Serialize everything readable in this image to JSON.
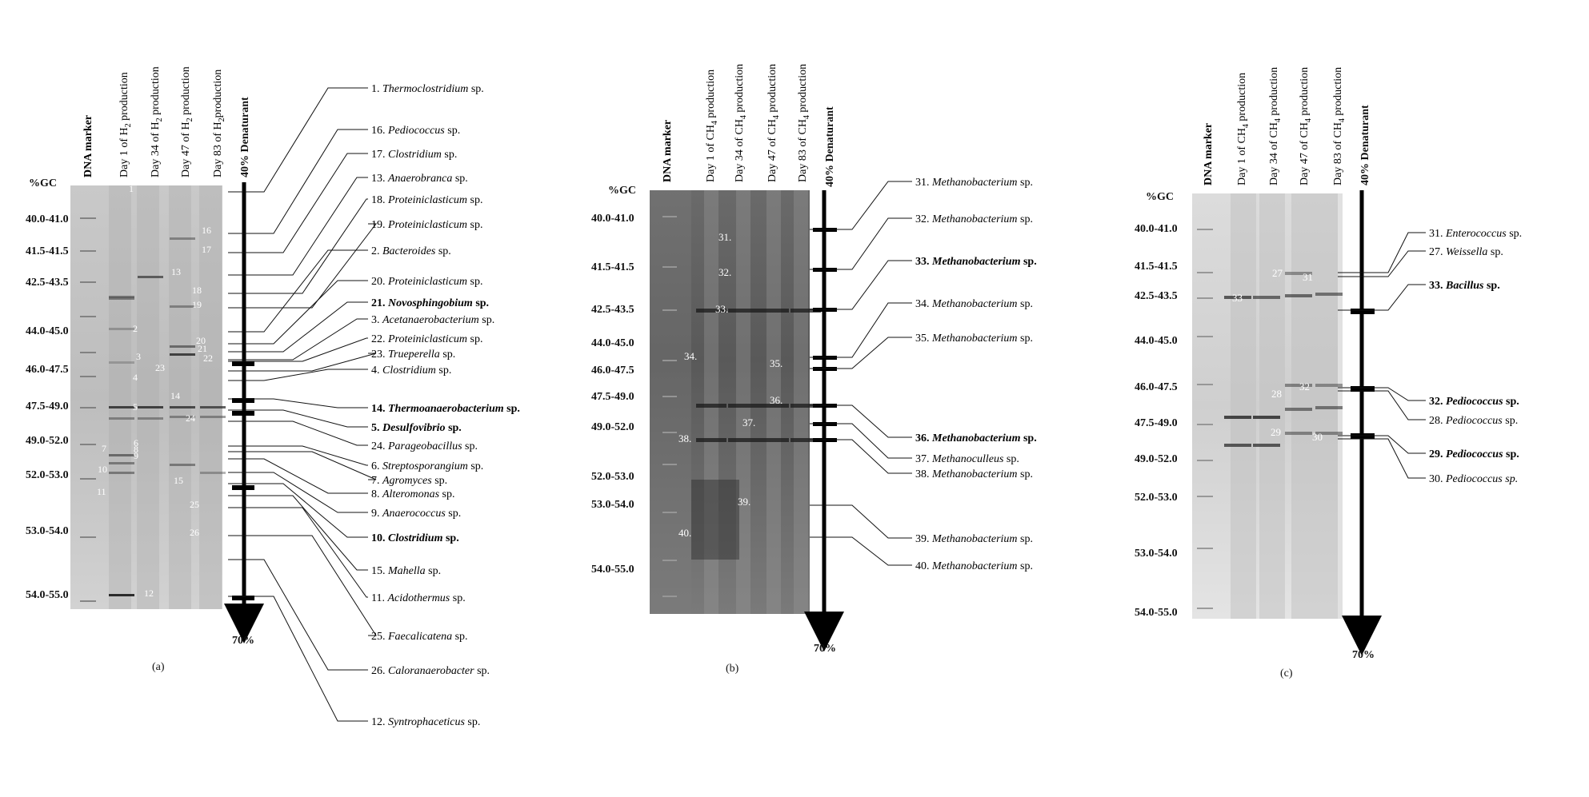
{
  "panels": [
    {
      "letter": "(a)",
      "gc_header": "%GC",
      "denaturant_top": "40% Denaturant",
      "denaturant_bottom": "70%",
      "lanes": [
        {
          "text": "DNA marker",
          "bold": true
        },
        {
          "prefix": "Day 1 of H",
          "sub": "2",
          "suffix": " production"
        },
        {
          "prefix": "Day 34 of H",
          "sub": "2",
          "suffix": " production"
        },
        {
          "prefix": "Day 47 of H",
          "sub": "2",
          "suffix": " production"
        },
        {
          "prefix": "Day 83 of H",
          "sub": "2",
          "suffix": "production"
        }
      ],
      "gc_ranges": [
        "40.0-41.0",
        "41.5-41.5",
        "42.5-43.5",
        "44.0-45.0",
        "46.0-47.5",
        "47.5-49.0",
        "49.0-52.0",
        "52.0-53.0",
        "53.0-54.0",
        "54.0-55.0"
      ],
      "band_numbers": [
        "1",
        "2",
        "3",
        "4",
        "5",
        "6",
        "7",
        "8",
        "9",
        "10",
        "11",
        "12",
        "13",
        "14",
        "15",
        "16",
        "17",
        "18",
        "19",
        "20",
        "21",
        "22",
        "23",
        "24",
        "25",
        "26"
      ],
      "labels": [
        {
          "num": "1.",
          "name": "Thermoclostridium",
          "sp": " sp.",
          "bold": false
        },
        {
          "num": "16.",
          "name": "Pediococcus",
          "sp": " sp.",
          "bold": false
        },
        {
          "num": "17.",
          "name": "Clostridium",
          "sp": " sp.",
          "bold": false
        },
        {
          "num": "13.",
          "name": "Anaerobranca",
          "sp": " sp.",
          "bold": false
        },
        {
          "num": "18.",
          "name": "Proteiniclasticum",
          "sp": " sp.",
          "bold": false
        },
        {
          "num": "19.",
          "name": "Proteiniclasticum",
          "sp": " sp.",
          "bold": false
        },
        {
          "num": "2.",
          "name": "Bacteroides",
          "sp": " sp.",
          "bold": false
        },
        {
          "num": "20.",
          "name": "Proteiniclasticum",
          "sp": " sp.",
          "bold": false
        },
        {
          "num": "21.",
          "name": "Novosphingobium",
          "sp": " sp.",
          "bold": true
        },
        {
          "num": "3.",
          "name": "Acetanaerobacterium",
          "sp": " sp.",
          "bold": false
        },
        {
          "num": "22.",
          "name": "Proteiniclasticum",
          "sp": " sp.",
          "bold": false
        },
        {
          "num": "23.",
          "name": "Trueperella",
          "sp": " sp.",
          "bold": false
        },
        {
          "num": "4.",
          "name": "Clostridium",
          "sp": " sp.",
          "bold": false
        },
        {
          "num": "14.",
          "name": "Thermoanaerobacterium",
          "sp": " sp.",
          "bold": true
        },
        {
          "num": "5.",
          "name": "Desulfovibrio",
          "sp": " sp.",
          "bold": true
        },
        {
          "num": "24.",
          "name": "Parageobacillus",
          "sp": " sp.",
          "bold": false
        },
        {
          "num": "6.",
          "name": "Streptosporangium",
          "sp": " sp.",
          "bold": false
        },
        {
          "num": "7.",
          "name": "Agromyces",
          "sp": " sp.",
          "bold": false
        },
        {
          "num": "8.",
          "name": "Alteromonas",
          "sp": " sp.",
          "bold": false
        },
        {
          "num": "9.",
          "name": "Anaerococcus",
          "sp": " sp.",
          "bold": false
        },
        {
          "num": "10.",
          "name": "Clostridium",
          "sp": " sp.",
          "bold": true
        },
        {
          "num": "15.",
          "name": "Mahella",
          "sp": " sp.",
          "bold": false
        },
        {
          "num": "11.",
          "name": "Acidothermus",
          "sp": " sp.",
          "bold": false
        },
        {
          "num": "25.",
          "name": "Faecalicatena",
          "sp": " sp.",
          "bold": false
        },
        {
          "num": "26.",
          "name": "Caloranaerobacter",
          "sp": " sp.",
          "bold": false
        },
        {
          "num": "12.",
          "name": "Syntrophaceticus",
          "sp": " sp.",
          "bold": false
        }
      ]
    },
    {
      "letter": "(b)",
      "gc_header": "%GC",
      "denaturant_top": "40% Denaturant",
      "denaturant_bottom": "70%",
      "lanes": [
        {
          "text": "DNA marker",
          "bold": true
        },
        {
          "prefix": "Day 1 of CH",
          "sub": "4",
          "suffix": " production"
        },
        {
          "prefix": "Day 34 of CH",
          "sub": "4",
          "suffix": " production"
        },
        {
          "prefix": "Day 47 of CH",
          "sub": "4",
          "suffix": " production"
        },
        {
          "prefix": "Day 83 of CH",
          "sub": "4",
          "suffix": " production"
        }
      ],
      "gc_ranges": [
        "40.0-41.0",
        "41.5-41.5",
        "42.5-43.5",
        "44.0-45.0",
        "46.0-47.5",
        "47.5-49.0",
        "49.0-52.0",
        "52.0-53.0",
        "53.0-54.0",
        "54.0-55.0"
      ],
      "band_numbers": [
        "31.",
        "32.",
        "33.",
        "34.",
        "35.",
        "36.",
        "37.",
        "38.",
        "39.",
        "40."
      ],
      "labels": [
        {
          "num": "31.",
          "name": "Methanobacterium",
          "sp": " sp.",
          "bold": false
        },
        {
          "num": "32.",
          "name": "Methanobacterium",
          "sp": " sp.",
          "bold": false
        },
        {
          "num": "33.",
          "name": "Methanobacterium",
          "sp": " sp.",
          "bold": true
        },
        {
          "num": "34.",
          "name": "Methanobacterium",
          "sp": " sp.",
          "bold": false
        },
        {
          "num": "35.",
          "name": "Methanobacterium",
          "sp": " sp.",
          "bold": false
        },
        {
          "num": "36.",
          "name": "Methanobacterium",
          "sp": " sp.",
          "bold": true
        },
        {
          "num": "37.",
          "name": "Methanoculleus",
          "sp": " sp.",
          "bold": false
        },
        {
          "num": "38.",
          "name": "Methanobacterium",
          "sp": " sp.",
          "bold": false
        },
        {
          "num": "39.",
          "name": "Methanobacterium",
          "sp": " sp.",
          "bold": false
        },
        {
          "num": "40.",
          "name": "Methanobacterium",
          "sp": " sp.",
          "bold": false
        }
      ]
    },
    {
      "letter": "(c)",
      "gc_header": "%GC",
      "denaturant_top": "40% Denaturant",
      "denaturant_bottom": "70%",
      "lanes": [
        {
          "text": "DNA marker",
          "bold": true
        },
        {
          "prefix": "Day 1 of CH",
          "sub": "4",
          "suffix": " production"
        },
        {
          "prefix": "Day 34 of CH",
          "sub": "4",
          "suffix": " production"
        },
        {
          "prefix": "Day 47 of CH",
          "sub": "4",
          "suffix": " production"
        },
        {
          "prefix": "Day 83 of CH",
          "sub": "4",
          "suffix": " production"
        }
      ],
      "gc_ranges": [
        "40.0-41.0",
        "41.5-41.5",
        "42.5-43.5",
        "44.0-45.0",
        "46.0-47.5",
        "47.5-49.0",
        "49.0-52.0",
        "52.0-53.0",
        "53.0-54.0",
        "54.0-55.0"
      ],
      "band_numbers": [
        "27",
        "31",
        "33",
        "28",
        "32",
        "29",
        "30"
      ],
      "labels": [
        {
          "num": "31.",
          "name": "Enterococcus",
          "sp": " sp.",
          "bold": false
        },
        {
          "num": "27.",
          "name": "Weissella",
          "sp": " sp.",
          "bold": false
        },
        {
          "num": "33.",
          "name": "Bacillus",
          "sp": " sp.",
          "bold": true
        },
        {
          "num": "32.",
          "name": "Pediococcus",
          "sp": " sp.",
          "bold": true
        },
        {
          "num": "28.",
          "name": "Pediococcus",
          "sp": " sp.",
          "bold": false
        },
        {
          "num": "29.",
          "name": "Pediococcus",
          "sp": " sp.",
          "bold": true
        },
        {
          "num": "30.",
          "name": "Pediococcus",
          "sp": " sp.",
          "bold": false,
          "sp_italic": true
        }
      ]
    }
  ]
}
